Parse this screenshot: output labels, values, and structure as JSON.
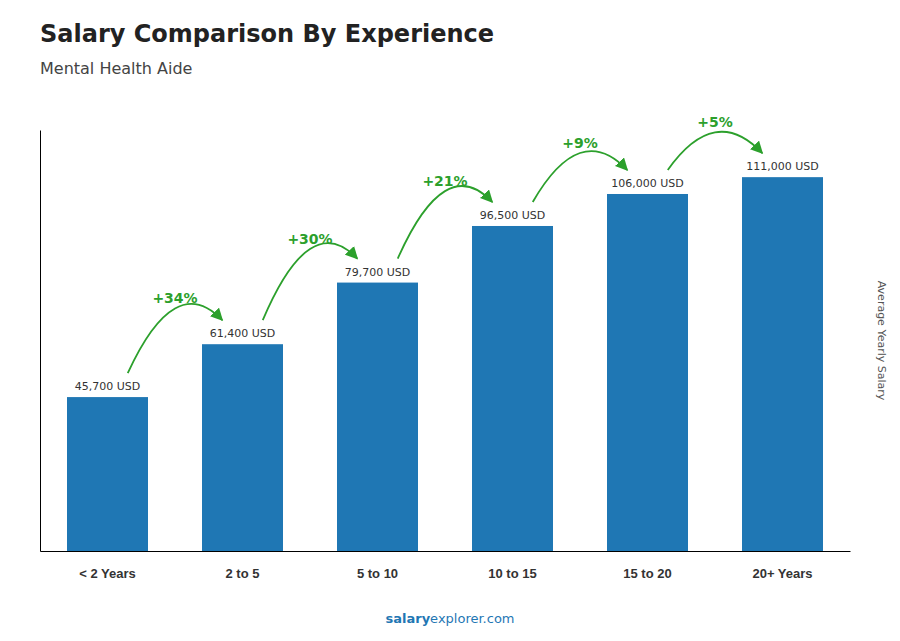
{
  "chart_data": {
    "type": "bar",
    "title": "Salary Comparison By Experience",
    "subtitle": "Mental Health Aide",
    "ylabel": "Average Yearly Salary",
    "categories": [
      "< 2 Years",
      "2 to 5",
      "5 to 10",
      "10 to 15",
      "15 to 20",
      "20+ Years"
    ],
    "values": [
      45700,
      61400,
      79700,
      96500,
      106000,
      111000
    ],
    "value_labels": [
      "45,700 USD",
      "61,400 USD",
      "79,700 USD",
      "96,500 USD",
      "106,000 USD",
      "111,000 USD"
    ],
    "data_labels": true,
    "annotations": [
      "+34%",
      "+30%",
      "+21%",
      "+9%",
      "+5%"
    ],
    "watermark": [
      "salary",
      "explorer.com"
    ],
    "ylim": [
      0,
      125000
    ],
    "tick_labels": "x",
    "grid": false
  }
}
